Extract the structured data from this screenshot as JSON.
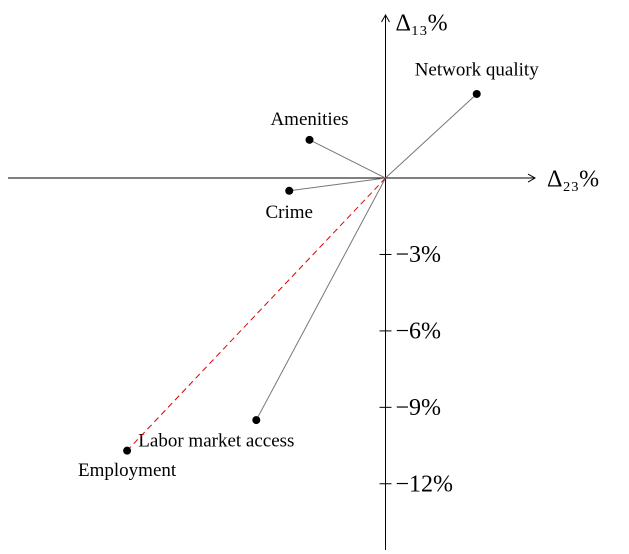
{
  "chart_data": {
    "type": "vector",
    "xlabel": "Δ₂₃%",
    "ylabel": "Δ₁₃%",
    "categories": [
      "Network quality",
      "Amenities",
      "Crime",
      "Labor market access",
      "Employment"
    ],
    "x": [
      3.6,
      -3.0,
      -3.8,
      -5.1,
      -10.2
    ],
    "values": [
      3.3,
      1.5,
      -0.5,
      -9.5,
      -10.7
    ],
    "line_colors": [
      "#777777",
      "#777777",
      "#777777",
      "#777777",
      "#e00000"
    ],
    "dashed": [
      false,
      false,
      false,
      false,
      true
    ],
    "xlim": [
      -14.9,
      5.9
    ],
    "ylim": [
      -14.6,
      6.4
    ],
    "yticks": [
      {
        "value": -3,
        "label": "−3%"
      },
      {
        "value": -6,
        "label": "−6%"
      },
      {
        "value": -9,
        "label": "−9%"
      },
      {
        "value": -12,
        "label": "−12%"
      }
    ]
  }
}
